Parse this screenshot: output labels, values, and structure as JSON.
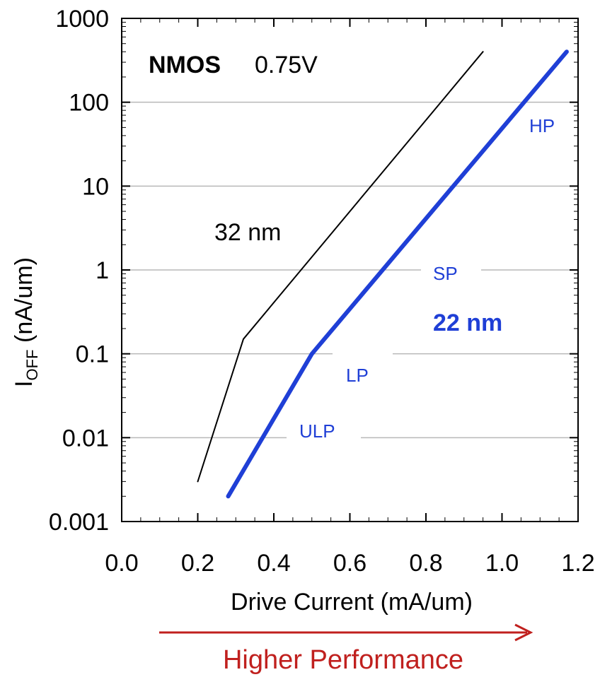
{
  "chart_data": {
    "type": "line",
    "xlabel": "Drive Current (mA/um)",
    "ylabel_main": "I",
    "ylabel_sub": "OFF",
    "ylabel_unit": " (nA/um)",
    "x_ticks": [
      "0.0",
      "0.2",
      "0.4",
      "0.6",
      "0.8",
      "1.0",
      "1.2"
    ],
    "x_tick_values": [
      0,
      0.2,
      0.4,
      0.6,
      0.8,
      1.0,
      1.2
    ],
    "y_ticks": [
      "0.001",
      "0.01",
      "0.1",
      "1",
      "10",
      "100",
      "1000"
    ],
    "y_tick_values": [
      0.001,
      0.01,
      0.1,
      1,
      10,
      100,
      1000
    ],
    "xlim": [
      0,
      1.2
    ],
    "ylim": [
      0.001,
      1000
    ],
    "yscale": "log",
    "grid": "horizontal",
    "series": [
      {
        "label_text": "32 nm",
        "color": "#000000",
        "points": [
          [
            0.2,
            0.003
          ],
          [
            0.32,
            0.15
          ],
          [
            0.95,
            400
          ]
        ]
      },
      {
        "label_text": "22 nm",
        "color": "#1f3fd6",
        "points": [
          [
            0.28,
            0.002
          ],
          [
            0.5,
            0.1
          ],
          [
            1.17,
            400
          ]
        ]
      }
    ],
    "annotations": {
      "device_bold": "NMOS",
      "device_voltage": "0.75V",
      "hp": "HP",
      "sp": "SP",
      "lp": "LP",
      "ulp": "ULP"
    },
    "arrow_label": "Higher Performance",
    "arrow_color": "#c0201e"
  }
}
